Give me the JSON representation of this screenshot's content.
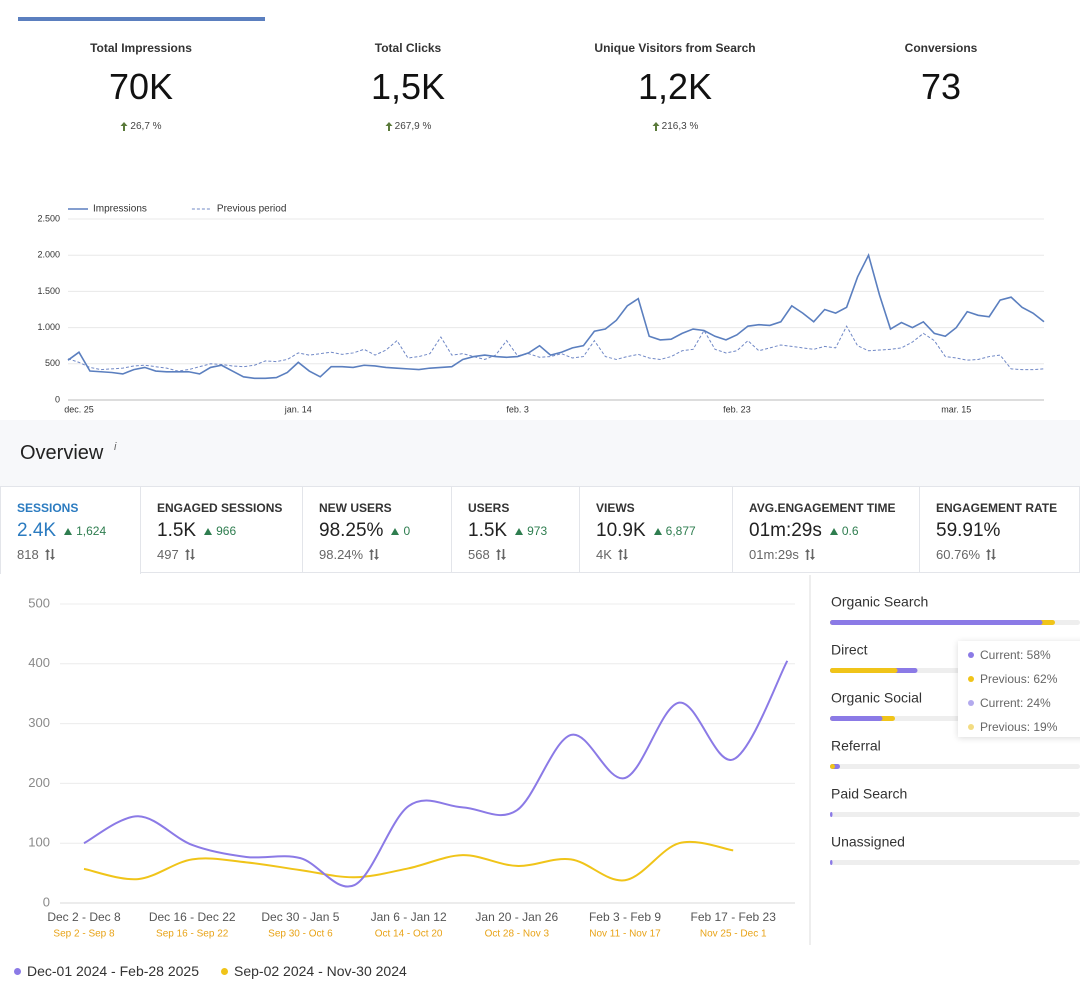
{
  "kpis": [
    {
      "label": "Total Impressions",
      "value": "70K",
      "change": "26,7 %"
    },
    {
      "label": "Total Clicks",
      "value": "1,5K",
      "change": "267,9 %"
    },
    {
      "label": "Unique Visitors from Search",
      "value": "1,2K",
      "change": "216,3 %"
    },
    {
      "label": "Conversions",
      "value": "73"
    }
  ],
  "chart_data": [
    {
      "type": "line",
      "legend": "top-left",
      "grid": true,
      "categories": [
        null,
        "dec. 25",
        null,
        null,
        null,
        null,
        null,
        null,
        null,
        null,
        null,
        null,
        null,
        null,
        null,
        null,
        null,
        null,
        null,
        null,
        null,
        "jan. 14",
        null,
        null,
        null,
        null,
        null,
        null,
        null,
        null,
        null,
        null,
        null,
        null,
        null,
        null,
        null,
        null,
        null,
        null,
        null,
        "feb. 3",
        null,
        null,
        null,
        null,
        null,
        null,
        null,
        null,
        null,
        null,
        null,
        null,
        null,
        null,
        null,
        null,
        null,
        null,
        null,
        "feb. 23",
        null,
        null,
        null,
        null,
        null,
        null,
        null,
        null,
        null,
        null,
        null,
        null,
        null,
        null,
        null,
        null,
        null,
        null,
        null,
        "mar. 15",
        null,
        null,
        null,
        null,
        null,
        null,
        null,
        null
      ],
      "series": [
        {
          "name": "Impressions",
          "color": "#5b7fbf",
          "values": [
            550,
            660,
            400,
            390,
            380,
            360,
            420,
            450,
            400,
            390,
            390,
            390,
            360,
            450,
            480,
            400,
            320,
            300,
            300,
            310,
            380,
            520,
            400,
            320,
            460,
            460,
            450,
            480,
            470,
            450,
            440,
            430,
            420,
            440,
            450,
            460,
            560,
            600,
            620,
            600,
            590,
            600,
            650,
            750,
            620,
            660,
            720,
            750,
            950,
            980,
            1100,
            1300,
            1400,
            880,
            830,
            840,
            920,
            980,
            960,
            880,
            830,
            900,
            1020,
            1040,
            1030,
            1080,
            1300,
            1200,
            1080,
            1250,
            1200,
            1280,
            1700,
            2000,
            1450,
            980,
            1070,
            1000,
            1080,
            920,
            880,
            1000,
            1220,
            1170,
            1150,
            1380,
            1420,
            1280,
            1200,
            1080
          ]
        },
        {
          "name": "Previous period",
          "color": "#7088c6",
          "dashed": true,
          "values": [
            570,
            520,
            450,
            420,
            430,
            440,
            470,
            480,
            460,
            440,
            400,
            420,
            460,
            500,
            490,
            470,
            460,
            480,
            540,
            530,
            560,
            650,
            620,
            640,
            660,
            630,
            650,
            700,
            620,
            690,
            820,
            580,
            600,
            640,
            870,
            620,
            640,
            600,
            560,
            620,
            820,
            610,
            640,
            590,
            600,
            640,
            580,
            600,
            820,
            600,
            560,
            600,
            630,
            580,
            560,
            600,
            680,
            700,
            960,
            700,
            650,
            680,
            820,
            680,
            720,
            760,
            740,
            720,
            700,
            740,
            720,
            1020,
            750,
            680,
            690,
            700,
            720,
            800,
            920,
            820,
            600,
            580,
            550,
            560,
            600,
            620,
            430,
            420,
            420,
            430
          ]
        }
      ],
      "ylim": [
        0,
        2500
      ],
      "yticks": [
        0,
        500,
        {
          "value": 1000,
          "label": "1.000"
        },
        {
          "value": 1500,
          "label": "1.500"
        },
        {
          "value": 2000,
          "label": "2.000"
        },
        {
          "value": 2500,
          "label": "2.500"
        }
      ]
    },
    {
      "type": "line",
      "grid": true,
      "smooth": true,
      "legend": "bottom-left",
      "categories": [
        "Dec 2 - Dec 8",
        null,
        "Dec 16 - Dec 22",
        null,
        "Dec 30 - Jan 5",
        null,
        "Jan 6 - Jan 12",
        null,
        "Jan 20 - Jan 26",
        null,
        "Feb 3 - Feb 9",
        null,
        "Feb 17 - Feb 23",
        null
      ],
      "previous_categories": [
        "Sep 2 - Sep 8",
        null,
        "Sep 16 - Sep 22",
        null,
        "Sep 30 - Oct 6",
        null,
        "Oct 14 - Oct 20",
        null,
        "Oct 28 - Nov 3",
        null,
        "Nov 11 - Nov 17",
        null,
        "Nov 25 - Dec 1",
        null
      ],
      "previous_categories_color": "#e8a317",
      "series": [
        {
          "name": "Dec-01 2024 - Feb-28 2025",
          "color": "#8b7ae6",
          "values": [
            100,
            145,
            97,
            77,
            75,
            30,
            162,
            160,
            155,
            281,
            209,
            335,
            240,
            405
          ]
        },
        {
          "name": "Sep-02 2024 - Nov-30 2024",
          "color": "#f0c419",
          "values": [
            57,
            40,
            73,
            68,
            55,
            43,
            58,
            80,
            62,
            73,
            38,
            100,
            88,
            null
          ]
        }
      ],
      "ylim": [
        0,
        500
      ],
      "yticks": [
        0,
        100,
        200,
        300,
        400,
        500
      ]
    }
  ],
  "overview": {
    "title": "Overview",
    "info": "i",
    "tabs": [
      {
        "label": "SESSIONS",
        "value": "2.4K",
        "delta": "1,624",
        "previous": "818"
      },
      {
        "label": "ENGAGED SESSIONS",
        "value": "1.5K",
        "delta": "966",
        "previous": "497"
      },
      {
        "label": "NEW USERS",
        "value": "98.25%",
        "delta": "0",
        "previous": "98.24%"
      },
      {
        "label": "USERS",
        "value": "1.5K",
        "delta": "973",
        "previous": "568"
      },
      {
        "label": "VIEWS",
        "value": "10.9K",
        "delta": "6,877",
        "previous": "4K"
      },
      {
        "label": "AVG.ENGAGEMENT TIME",
        "value": "01m:29s",
        "delta": "0.6",
        "previous": "01m:29s"
      },
      {
        "label": "ENGAGEMENT RATE",
        "value": "59.91%",
        "previous": "60.76%"
      }
    ]
  },
  "channels": {
    "current_color": "#8b7ae6",
    "previous_color": "#f0c419",
    "items": [
      {
        "name": "Organic Search",
        "current": 85,
        "previous": 90
      },
      {
        "name": "Direct",
        "current": 35,
        "previous": 27
      },
      {
        "name": "Organic Social",
        "current": 21,
        "previous": 26
      },
      {
        "name": "Referral",
        "current": 4,
        "previous": 2
      },
      {
        "name": "Paid Search",
        "current": 1,
        "previous": 0
      },
      {
        "name": "Unassigned",
        "current": 1,
        "previous": 0
      }
    ],
    "tooltip": [
      {
        "text": "Current: 58%",
        "color": "#8b7ae6"
      },
      {
        "text": "Previous: 62%",
        "color": "#f0c419"
      },
      {
        "text": "Current: 24%",
        "color": "#b3aaee"
      },
      {
        "text": "Previous: 19%",
        "color": "#f3dc82"
      }
    ]
  }
}
